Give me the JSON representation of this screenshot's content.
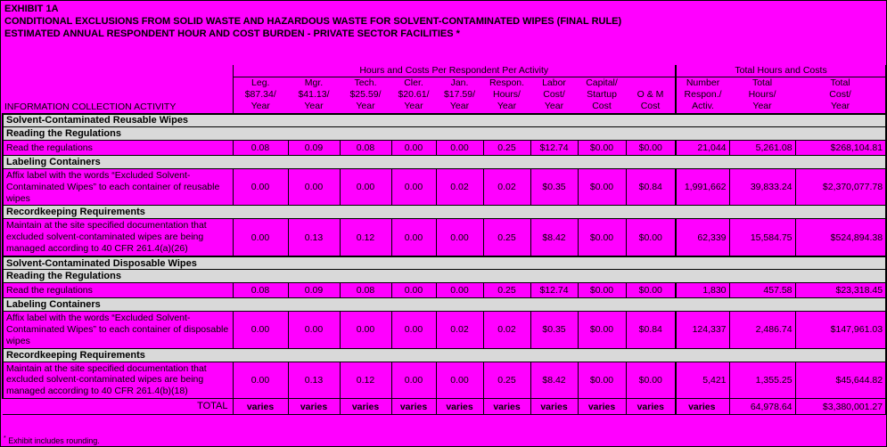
{
  "page": {
    "background": "#FF00FF",
    "section_bg": "#D9D9D9",
    "border_color": "#000000"
  },
  "title_lines": [
    "EXHIBIT 1A",
    "CONDITIONAL EXCLUSIONS FROM SOLID WASTE AND HAZARDOUS WASTE FOR SOLVENT-CONTAMINATED WIPES (FINAL RULE)",
    "ESTIMATED ANNUAL RESPONDENT HOUR AND COST BURDEN - PRIVATE SECTOR FACILITIES *"
  ],
  "table": {
    "group_header_left": "Hours and Costs Per Respondent Per Activity",
    "group_header_right": "Total Hours and Costs",
    "row_header": "INFORMATION COLLECTION ACTIVITY",
    "columns": [
      {
        "key": "leg",
        "lines": [
          "Leg.",
          "$87.34/",
          "Year"
        ]
      },
      {
        "key": "mgr",
        "lines": [
          "Mgr.",
          "$41.13/",
          "Year"
        ]
      },
      {
        "key": "tech",
        "lines": [
          "Tech.",
          "$25.59/",
          "Year"
        ]
      },
      {
        "key": "cler",
        "lines": [
          "Cler.",
          "$20.61/",
          "Year"
        ]
      },
      {
        "key": "jan",
        "lines": [
          "Jan.",
          "$17.59/",
          "Year"
        ]
      },
      {
        "key": "respon-hours",
        "lines": [
          "Respon.",
          "Hours/",
          "Year"
        ]
      },
      {
        "key": "labor-cost",
        "lines": [
          "Labor",
          "Cost/",
          "Year"
        ]
      },
      {
        "key": "capital-startup",
        "lines": [
          "Capital/",
          "Startup",
          "Cost"
        ]
      },
      {
        "key": "om-cost",
        "lines": [
          "O & M",
          "Cost"
        ]
      },
      {
        "key": "number-respondents",
        "lines": [
          "Number",
          "Respon./",
          "Activ."
        ]
      },
      {
        "key": "total-hours",
        "lines": [
          "Total",
          "Hours/",
          "Year"
        ]
      },
      {
        "key": "total-cost",
        "lines": [
          "Total",
          "Cost/",
          "Year"
        ]
      }
    ],
    "rows": [
      {
        "type": "section_major",
        "label": "Solvent-Contaminated Reusable Wipes"
      },
      {
        "type": "section",
        "label": "Reading the Regulations"
      },
      {
        "type": "data",
        "label": "Read the regulations",
        "values": [
          "0.08",
          "0.09",
          "0.08",
          "0.00",
          "0.00",
          "0.25",
          "$12.74",
          "$0.00",
          "$0.00",
          "21,044",
          "5,261.08",
          "$268,104.81"
        ]
      },
      {
        "type": "section",
        "label": "Labeling Containers"
      },
      {
        "type": "data",
        "label": "Affix label with the words “Excluded Solvent-\nContaminated Wipes” to each container of reusable\nwipes",
        "values": [
          "0.00",
          "0.00",
          "0.00",
          "0.00",
          "0.02",
          "0.02",
          "$0.35",
          "$0.00",
          "$0.84",
          "1,991,662",
          "39,833.24",
          "$2,370,077.78"
        ]
      },
      {
        "type": "section",
        "label": "Recordkeeping Requirements"
      },
      {
        "type": "data",
        "label": "Maintain at the site specified documentation that\nexcluded solvent-contaminated wipes are being\nmanaged according to 40 CFR 261.4(a)(26)",
        "values": [
          "0.00",
          "0.13",
          "0.12",
          "0.00",
          "0.00",
          "0.25",
          "$8.42",
          "$0.00",
          "$0.00",
          "62,339",
          "15,584.75",
          "$524,894.38"
        ]
      },
      {
        "type": "section_major",
        "label": "Solvent-Contaminated Disposable Wipes"
      },
      {
        "type": "section",
        "label": "Reading the Regulations"
      },
      {
        "type": "data",
        "label": "Read the regulations",
        "values": [
          "0.08",
          "0.09",
          "0.08",
          "0.00",
          "0.00",
          "0.25",
          "$12.74",
          "$0.00",
          "$0.00",
          "1,830",
          "457.58",
          "$23,318.45"
        ]
      },
      {
        "type": "section",
        "label": "Labeling Containers"
      },
      {
        "type": "data",
        "label": "Affix label with the words “Excluded Solvent-\nContaminated Wipes” to each container of disposable\nwipes",
        "values": [
          "0.00",
          "0.00",
          "0.00",
          "0.00",
          "0.02",
          "0.02",
          "$0.35",
          "$0.00",
          "$0.84",
          "124,337",
          "2,486.74",
          "$147,961.03"
        ]
      },
      {
        "type": "section",
        "label": "Recordkeeping Requirements"
      },
      {
        "type": "data",
        "label": "Maintain at the site specified documentation that\nexcluded solvent-contaminated wipes are being\nmanaged according to 40 CFR 261.4(b)(18)",
        "values": [
          "0.00",
          "0.13",
          "0.12",
          "0.00",
          "0.00",
          "0.25",
          "$8.42",
          "$0.00",
          "$0.00",
          "5,421",
          "1,355.25",
          "$45,644.82"
        ]
      }
    ],
    "total": {
      "label": "TOTAL",
      "values": [
        "varies",
        "varies",
        "varies",
        "varies",
        "varies",
        "varies",
        "varies",
        "varies",
        "varies",
        "varies",
        "64,978.64",
        "$3,380,001.27"
      ]
    }
  },
  "footnote": {
    "marker": "*",
    "text": "Exhibit includes rounding."
  }
}
